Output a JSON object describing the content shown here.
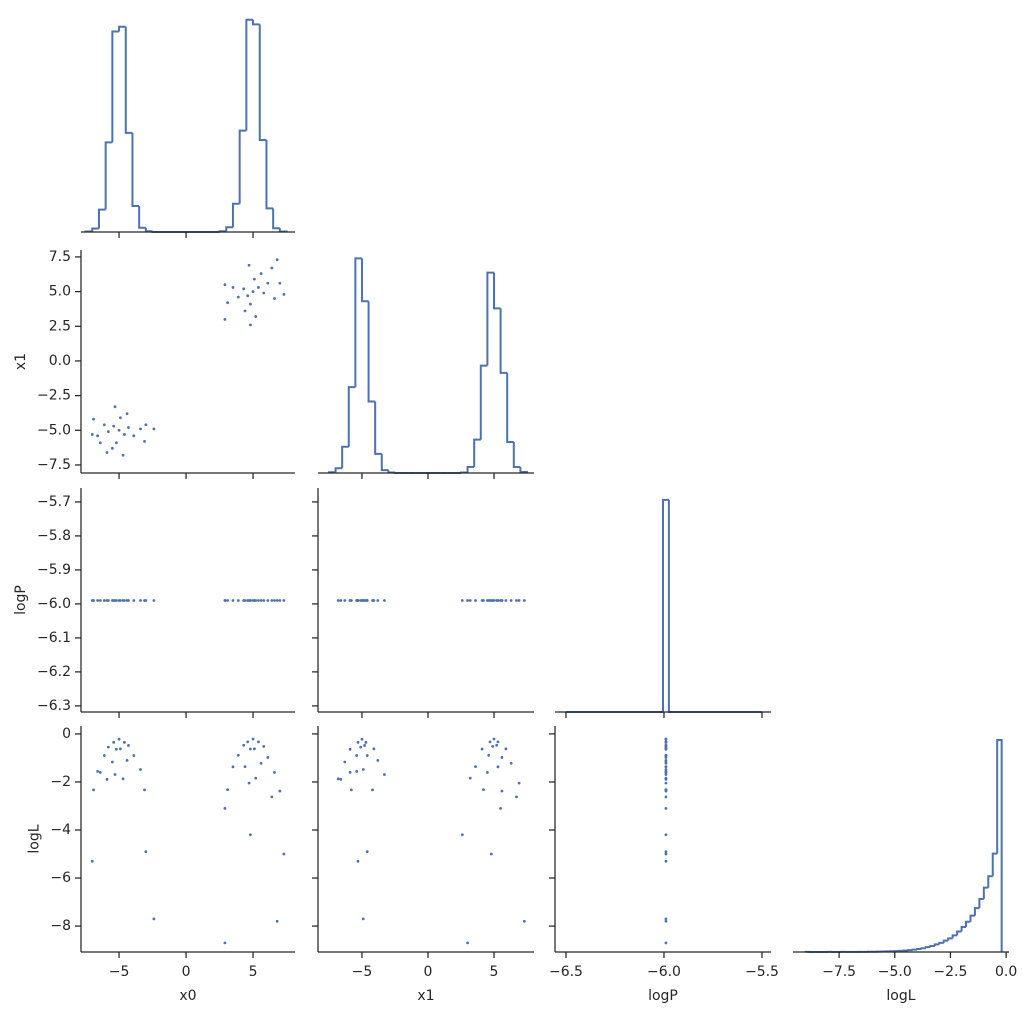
{
  "chart_data": [
    {
      "type": "histogram",
      "color": "#4c72b0",
      "bins": [
        -7.5,
        -7,
        -6.5,
        -6,
        -5.5,
        -5,
        -4.5,
        -4,
        -3.5,
        -3,
        -2.5,
        -2,
        -1.5,
        -1,
        -0.5,
        0,
        0.5,
        1,
        1.5,
        2,
        2.5,
        3,
        3.5,
        4,
        4.5,
        5,
        5.5,
        6,
        6.5,
        7,
        7.5
      ],
      "values": [
        2,
        15,
        95,
        380,
        850,
        870,
        420,
        110,
        18,
        3,
        0,
        0,
        0,
        0,
        0,
        0,
        0,
        0,
        0,
        0,
        3,
        20,
        120,
        430,
        900,
        880,
        390,
        100,
        16,
        2
      ],
      "xlim": [
        -7.84,
        8.13
      ],
      "ylim": [
        0,
        920
      ]
    },
    {
      "type": "scatter",
      "color": "#4c72b0",
      "ylabel": "x1",
      "x": [
        -5.0,
        -5.4,
        -4.6,
        -5.8,
        -4.3,
        -5.2,
        -4.9,
        -6.1,
        -3.9,
        -5.5,
        -4.4,
        -6.6,
        -3.4,
        -5.3,
        -4.7,
        -6.9,
        -3.1,
        -5.9,
        -6.4,
        -2.4,
        -7.0,
        -3.0,
        5.0,
        5.4,
        4.6,
        5.8,
        4.3,
        5.1,
        4.8,
        6.1,
        3.9,
        5.6,
        4.4,
        6.6,
        3.5,
        5.2,
        4.7,
        7.0,
        3.1,
        6.4,
        2.9,
        7.3,
        2.9,
        4.8,
        6.8
      ],
      "y": [
        -5.0,
        -4.7,
        -5.3,
        -5.1,
        -4.8,
        -5.9,
        -4.1,
        -4.6,
        -5.4,
        -6.3,
        -3.8,
        -5.4,
        -4.9,
        -3.3,
        -6.8,
        -4.2,
        -5.8,
        -6.6,
        -5.9,
        -4.9,
        -5.3,
        -4.6,
        5.0,
        5.3,
        4.7,
        4.9,
        5.2,
        5.9,
        4.1,
        5.6,
        4.6,
        6.3,
        3.6,
        4.5,
        5.3,
        3.2,
        6.9,
        5.6,
        4.2,
        6.7,
        5.5,
        4.8,
        3.0,
        2.6,
        7.3
      ],
      "xlim": [
        -7.84,
        8.13
      ],
      "ylim": [
        -8.08,
        8.0
      ],
      "yticks": [
        {
          "value": -7.5,
          "label": "−7.5"
        },
        {
          "value": -5,
          "label": "−5.0"
        },
        {
          "value": -2.5,
          "label": "−2.5"
        },
        {
          "value": 0,
          "label": "0.0"
        },
        {
          "value": 2.5,
          "label": "2.5"
        },
        {
          "value": 5,
          "label": "5.0"
        },
        {
          "value": 7.5,
          "label": "7.5"
        }
      ]
    },
    {
      "type": "histogram",
      "color": "#4c72b0",
      "bins": [
        -7.5,
        -7,
        -6.5,
        -6,
        -5.5,
        -5,
        -4.5,
        -4,
        -3.5,
        -3,
        -2.5,
        -2,
        -1.5,
        -1,
        -0.5,
        0,
        0.5,
        1,
        1.5,
        2,
        2.5,
        3,
        3.5,
        4,
        4.5,
        5,
        5.5,
        6,
        6.5,
        7,
        7.5
      ],
      "values": [
        3,
        20,
        110,
        360,
        900,
        720,
        300,
        80,
        12,
        2,
        0,
        0,
        0,
        0,
        0,
        0,
        0,
        0,
        0,
        0,
        2,
        25,
        140,
        450,
        840,
        690,
        420,
        130,
        25,
        4
      ],
      "xlim": [
        -8.33,
        8.03
      ],
      "ylim": [
        0,
        935
      ]
    },
    {
      "type": "scatter",
      "color": "#4c72b0",
      "ylabel": "logP",
      "x": [
        -5.0,
        -5.4,
        -4.6,
        -5.8,
        -4.3,
        -5.2,
        -4.9,
        -6.1,
        -3.9,
        -5.5,
        -4.4,
        -6.6,
        -3.4,
        -5.3,
        -4.7,
        -6.9,
        -3.1,
        -5.9,
        -6.4,
        -2.4,
        -7.0,
        -3.0,
        5.0,
        5.4,
        4.6,
        5.8,
        4.3,
        5.1,
        4.8,
        6.1,
        3.9,
        5.6,
        4.4,
        6.6,
        3.5,
        5.2,
        4.7,
        7.0,
        3.1,
        6.4,
        2.9,
        7.3,
        2.9,
        4.8,
        6.8
      ],
      "y": [
        -5.99,
        -5.99,
        -5.99,
        -5.99,
        -5.99,
        -5.99,
        -5.99,
        -5.99,
        -5.99,
        -5.99,
        -5.99,
        -5.99,
        -5.99,
        -5.99,
        -5.99,
        -5.99,
        -5.99,
        -5.99,
        -5.99,
        -5.99,
        -5.99,
        -5.99,
        -5.99,
        -5.99,
        -5.99,
        -5.99,
        -5.99,
        -5.99,
        -5.99,
        -5.99,
        -5.99,
        -5.99,
        -5.99,
        -5.99,
        -5.99,
        -5.99,
        -5.99,
        -5.99,
        -5.99,
        -5.99,
        -5.99,
        -5.99,
        -5.99,
        -5.99,
        -5.99
      ],
      "xlim": [
        -7.84,
        8.13
      ],
      "ylim": [
        -6.318,
        -5.659
      ],
      "yticks": [
        {
          "value": -6.3,
          "label": "−6.3"
        },
        {
          "value": -6.2,
          "label": "−6.2"
        },
        {
          "value": -6.1,
          "label": "−6.1"
        },
        {
          "value": -6.0,
          "label": "−6.0"
        },
        {
          "value": -5.9,
          "label": "−5.9"
        },
        {
          "value": -5.8,
          "label": "−5.8"
        },
        {
          "value": -5.7,
          "label": "−5.7"
        }
      ]
    },
    {
      "type": "scatter",
      "color": "#4c72b0",
      "x": [
        -5.0,
        -4.7,
        -5.3,
        -5.1,
        -4.8,
        -5.9,
        -4.1,
        -4.6,
        -5.4,
        -6.3,
        -3.8,
        -5.4,
        -4.9,
        -3.3,
        -6.8,
        -4.2,
        -5.8,
        -6.6,
        -5.9,
        -4.9,
        -5.3,
        -4.6,
        5.0,
        5.3,
        4.7,
        4.9,
        5.2,
        5.9,
        4.1,
        5.6,
        4.6,
        6.3,
        3.6,
        4.5,
        5.3,
        3.2,
        6.9,
        5.6,
        4.2,
        6.7,
        5.5,
        4.8,
        3.0,
        2.6,
        7.3
      ],
      "y": [
        -5.99,
        -5.99,
        -5.99,
        -5.99,
        -5.99,
        -5.99,
        -5.99,
        -5.99,
        -5.99,
        -5.99,
        -5.99,
        -5.99,
        -5.99,
        -5.99,
        -5.99,
        -5.99,
        -5.99,
        -5.99,
        -5.99,
        -5.99,
        -5.99,
        -5.99,
        -5.99,
        -5.99,
        -5.99,
        -5.99,
        -5.99,
        -5.99,
        -5.99,
        -5.99,
        -5.99,
        -5.99,
        -5.99,
        -5.99,
        -5.99,
        -5.99,
        -5.99,
        -5.99,
        -5.99,
        -5.99,
        -5.99,
        -5.99,
        -5.99,
        -5.99,
        -5.99
      ],
      "xlim": [
        -8.33,
        8.03
      ],
      "ylim": [
        -6.318,
        -5.659
      ]
    },
    {
      "type": "histogram",
      "color": "#4c72b0",
      "bins": [
        -6.5,
        -6.005,
        -5.975,
        -5.5
      ],
      "values": [
        0,
        10000,
        0
      ],
      "xlim": [
        -6.556,
        -5.454
      ],
      "ylim": [
        0,
        10560
      ]
    },
    {
      "type": "scatter",
      "color": "#4c72b0",
      "xlabel": "x0",
      "ylabel": "logL",
      "x": [
        -5.0,
        -5.4,
        -4.6,
        -5.8,
        -4.3,
        -5.2,
        -4.9,
        -6.1,
        -3.9,
        -5.5,
        -4.4,
        -6.6,
        -3.4,
        -5.3,
        -4.7,
        -6.9,
        -3.1,
        -5.9,
        -6.4,
        -2.4,
        -7.0,
        -3.0,
        5.0,
        5.4,
        4.6,
        5.8,
        4.3,
        5.1,
        4.8,
        6.1,
        3.9,
        5.6,
        4.4,
        6.6,
        3.5,
        5.2,
        4.7,
        7.0,
        3.1,
        6.4,
        2.9,
        7.3,
        2.9,
        4.8,
        6.8
      ],
      "y": [
        -0.22,
        -0.35,
        -0.35,
        -0.55,
        -0.48,
        -0.64,
        -0.62,
        -0.9,
        -0.9,
        -1.17,
        -1.1,
        -1.56,
        -1.48,
        -1.69,
        -1.87,
        -2.33,
        -2.33,
        -1.89,
        -1.6,
        -7.7,
        -5.3,
        -4.9,
        -0.21,
        -0.33,
        -0.33,
        -0.52,
        -0.47,
        -0.62,
        -0.63,
        -0.98,
        -0.89,
        -1.22,
        -1.36,
        -1.6,
        -1.37,
        -1.84,
        -2.05,
        -2.38,
        -2.32,
        -2.62,
        -3.1,
        -5.0,
        -8.7,
        -4.2,
        -7.8
      ],
      "xlim": [
        -7.84,
        8.13
      ],
      "ylim": [
        -9.08,
        0.33
      ],
      "xticks": [
        {
          "value": -5,
          "label": "−5"
        },
        0,
        5
      ],
      "yticks": [
        {
          "value": -8,
          "label": "−8"
        },
        {
          "value": -6,
          "label": "−6"
        },
        {
          "value": -4,
          "label": "−4"
        },
        {
          "value": -2,
          "label": "−2"
        },
        0
      ]
    },
    {
      "type": "scatter",
      "color": "#4c72b0",
      "xlabel": "x1",
      "x": [
        -5.0,
        -4.7,
        -5.3,
        -5.1,
        -4.8,
        -5.9,
        -4.1,
        -4.6,
        -5.4,
        -6.3,
        -3.8,
        -5.4,
        -4.9,
        -3.3,
        -6.8,
        -4.2,
        -5.8,
        -6.6,
        -5.9,
        -4.9,
        -5.3,
        -4.6,
        5.0,
        5.3,
        4.7,
        4.9,
        5.2,
        5.9,
        4.1,
        5.6,
        4.6,
        6.3,
        3.6,
        4.5,
        5.3,
        3.2,
        6.9,
        5.6,
        4.2,
        6.7,
        5.5,
        4.8,
        3.0,
        2.6,
        7.3
      ],
      "y": [
        -0.22,
        -0.35,
        -0.35,
        -0.55,
        -0.48,
        -0.64,
        -0.62,
        -0.9,
        -0.9,
        -1.17,
        -1.1,
        -1.56,
        -1.48,
        -1.69,
        -1.87,
        -2.33,
        -2.33,
        -1.89,
        -1.6,
        -7.7,
        -5.3,
        -4.9,
        -0.21,
        -0.33,
        -0.33,
        -0.52,
        -0.47,
        -0.62,
        -0.63,
        -0.98,
        -0.89,
        -1.22,
        -1.36,
        -1.6,
        -1.37,
        -1.84,
        -2.05,
        -2.38,
        -2.32,
        -2.62,
        -3.1,
        -5.0,
        -8.7,
        -4.2,
        -7.8
      ],
      "xlim": [
        -8.33,
        8.03
      ],
      "ylim": [
        -9.08,
        0.33
      ],
      "xticks": [
        {
          "value": -5,
          "label": "−5"
        },
        0,
        5
      ]
    },
    {
      "type": "scatter",
      "color": "#4c72b0",
      "xlabel": "logP",
      "x": [
        -5.99,
        -5.99,
        -5.99,
        -5.99,
        -5.99,
        -5.99,
        -5.99,
        -5.99,
        -5.99,
        -5.99,
        -5.99,
        -5.99,
        -5.99,
        -5.99,
        -5.99,
        -5.99,
        -5.99,
        -5.99,
        -5.99,
        -5.99,
        -5.99,
        -5.99,
        -5.99,
        -5.99,
        -5.99,
        -5.99,
        -5.99,
        -5.99,
        -5.99,
        -5.99,
        -5.99,
        -5.99,
        -5.99,
        -5.99,
        -5.99,
        -5.99,
        -5.99,
        -5.99,
        -5.99,
        -5.99,
        -5.99,
        -5.99,
        -5.99,
        -5.99,
        -5.99
      ],
      "y": [
        -0.22,
        -0.35,
        -0.35,
        -0.55,
        -0.48,
        -0.64,
        -0.62,
        -0.9,
        -0.9,
        -1.17,
        -1.1,
        -1.56,
        -1.48,
        -1.69,
        -1.87,
        -2.33,
        -2.33,
        -1.89,
        -1.6,
        -7.7,
        -5.3,
        -4.9,
        -0.21,
        -0.33,
        -0.33,
        -0.52,
        -0.47,
        -0.62,
        -0.63,
        -0.98,
        -0.89,
        -1.22,
        -1.36,
        -1.6,
        -1.37,
        -1.84,
        -2.05,
        -2.38,
        -2.32,
        -2.62,
        -3.1,
        -5.0,
        -8.7,
        -4.2,
        -7.8
      ],
      "xlim": [
        -6.556,
        -5.454
      ],
      "ylim": [
        -9.08,
        0.33
      ],
      "xticks": [
        {
          "value": -6.5,
          "label": "−6.5"
        },
        {
          "value": -6.0,
          "label": "−6.0"
        },
        {
          "value": -5.5,
          "label": "−5.5"
        }
      ]
    },
    {
      "type": "histogram",
      "color": "#4c72b0",
      "xlabel": "logL",
      "bins": [
        -9,
        -8.8,
        -8.6,
        -8.4,
        -8.2,
        -8,
        -7.8,
        -7.6,
        -7.4,
        -7.2,
        -7,
        -6.8,
        -6.6,
        -6.4,
        -6.2,
        -6,
        -5.8,
        -5.6,
        -5.4,
        -5.2,
        -5,
        -4.8,
        -4.6,
        -4.4,
        -4.2,
        -4,
        -3.8,
        -3.6,
        -3.4,
        -3.2,
        -3,
        -2.8,
        -2.6,
        -2.4,
        -2.2,
        -2,
        -1.8,
        -1.6,
        -1.4,
        -1.2,
        -1,
        -0.8,
        -0.6,
        -0.4,
        -0.2
      ],
      "values": [
        1,
        0,
        0,
        0,
        0,
        1,
        0,
        0,
        1,
        1,
        1,
        1,
        2,
        2,
        3,
        4,
        5,
        6,
        8,
        10,
        12,
        15,
        20,
        25,
        32,
        40,
        50,
        65,
        80,
        100,
        120,
        150,
        180,
        220,
        270,
        330,
        400,
        480,
        580,
        700,
        850,
        1000,
        1300,
        2800
      ],
      "xlim": [
        -9.57,
        0.13
      ],
      "ylim": [
        0,
        2985
      ],
      "xticks": [
        {
          "value": -7.5,
          "label": "−7.5"
        },
        {
          "value": -5,
          "label": "−5.0"
        },
        {
          "value": -2.5,
          "label": "−2.5"
        },
        {
          "value": 0,
          "label": "0.0"
        }
      ]
    }
  ]
}
